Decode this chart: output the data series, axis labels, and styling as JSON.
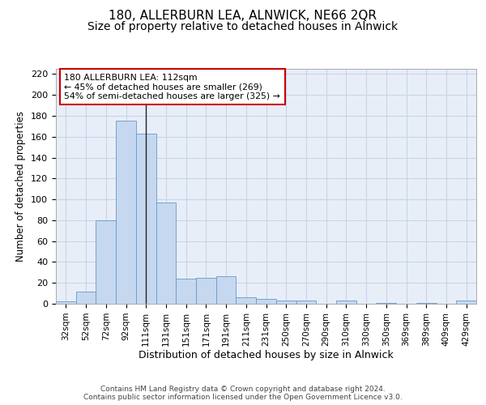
{
  "title": "180, ALLERBURN LEA, ALNWICK, NE66 2QR",
  "subtitle": "Size of property relative to detached houses in Alnwick",
  "xlabel": "Distribution of detached houses by size in Alnwick",
  "ylabel": "Number of detached properties",
  "footer_line1": "Contains HM Land Registry data © Crown copyright and database right 2024.",
  "footer_line2": "Contains public sector information licensed under the Open Government Licence v3.0.",
  "bin_labels": [
    "32sqm",
    "52sqm",
    "72sqm",
    "92sqm",
    "111sqm",
    "131sqm",
    "151sqm",
    "171sqm",
    "191sqm",
    "211sqm",
    "231sqm",
    "250sqm",
    "270sqm",
    "290sqm",
    "310sqm",
    "330sqm",
    "350sqm",
    "369sqm",
    "389sqm",
    "409sqm",
    "429sqm"
  ],
  "bar_heights": [
    2,
    12,
    80,
    175,
    163,
    97,
    24,
    25,
    26,
    6,
    5,
    3,
    3,
    0,
    3,
    0,
    1,
    0,
    1,
    0,
    3
  ],
  "bar_color": "#c5d8ef",
  "bar_edge_color": "#6699cc",
  "grid_color": "#c8d4e8",
  "property_bin_index": 4,
  "property_line_color": "#222222",
  "annotation_text": "180 ALLERBURN LEA: 112sqm\n← 45% of detached houses are smaller (269)\n54% of semi-detached houses are larger (325) →",
  "annotation_box_color": "#ffffff",
  "annotation_box_edge_color": "#cc0000",
  "ylim": [
    0,
    225
  ],
  "yticks": [
    0,
    20,
    40,
    60,
    80,
    100,
    120,
    140,
    160,
    180,
    200,
    220
  ],
  "background_color": "#ffffff",
  "plot_bg_color": "#e8eef8",
  "title_fontsize": 11,
  "subtitle_fontsize": 10,
  "ylabel_fontsize": 8.5,
  "xlabel_fontsize": 9,
  "tick_fontsize": 8,
  "footer_fontsize": 6.5
}
